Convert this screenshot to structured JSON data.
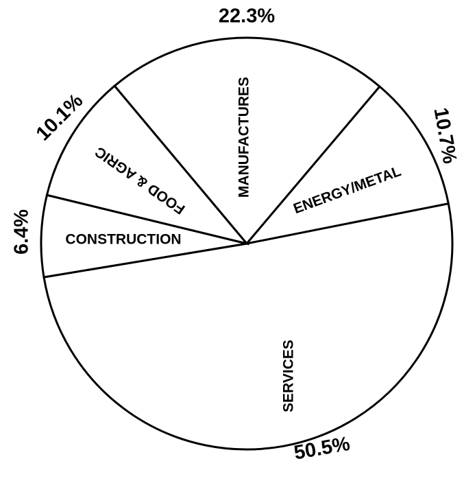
{
  "chart_data": {
    "type": "pie",
    "categories": [
      "MANUFACTURES",
      "ENERGY/METAL",
      "SERVICES",
      "CONSTRUCTION",
      "FOOD & AGRIC"
    ],
    "values": [
      22.3,
      10.7,
      50.5,
      6.4,
      10.1
    ],
    "value_labels": [
      "22.3%",
      "10.7%",
      "50.5%",
      "6.4%",
      "10.1%"
    ],
    "color": "#ffffff"
  }
}
